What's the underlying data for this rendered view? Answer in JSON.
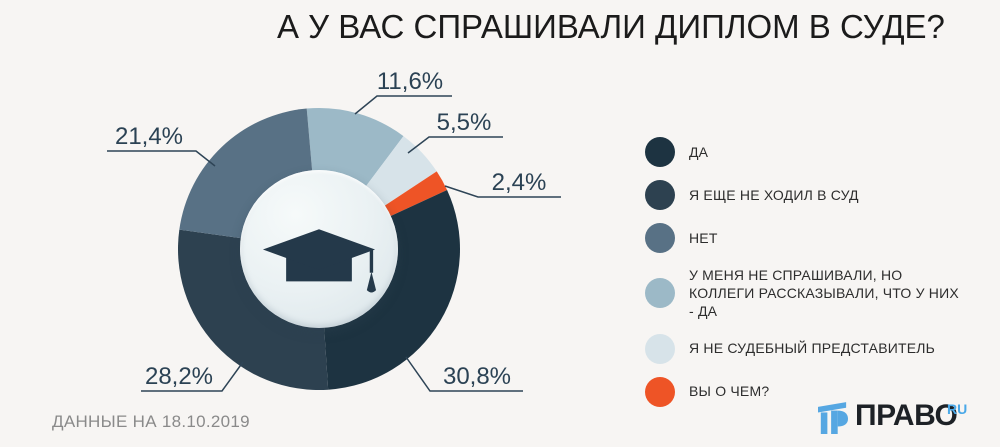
{
  "title": "А У ВАС СПРАШИВАЛИ ДИПЛОМ В СУДЕ?",
  "footer": {
    "note": "ДАННЫЕ НА 18.10.2019"
  },
  "logo": {
    "name": "ПРАВО",
    "domain": "RU",
    "brand_blue": "#56a7e2"
  },
  "colors": {
    "background": "#f7f5f3",
    "callout_text": "#2b4254",
    "callout_line": "#2e4456",
    "footer_text": "#8a8a8a"
  },
  "chart_data": {
    "type": "pie",
    "variant": "donut",
    "title": "А У ВАС СПРАШИВАЛИ ДИПЛОМ В СУДЕ?",
    "start_angle_deg": -5,
    "legend_position": "right",
    "slices": [
      {
        "label": "У МЕНЯ НЕ СПРАШИВАЛИ, НО КОЛЛЕГИ РАССКАЗЫВАЛИ, ЧТО У НИХ - ДА",
        "value": 11.6,
        "display": "11,6%",
        "color": "#9cb9c7"
      },
      {
        "label": "Я НЕ СУДЕБНЫЙ ПРЕДСТАВИТЕЛЬ",
        "value": 5.5,
        "display": "5,5%",
        "color": "#d7e3e9"
      },
      {
        "label": "ВЫ О ЧЕМ?",
        "value": 2.4,
        "display": "2,4%",
        "color": "#ee5426"
      },
      {
        "label": "ДА",
        "value": 30.8,
        "display": "30,8%",
        "color": "#1d3341"
      },
      {
        "label": "Я ЕЩЕ НЕ ХОДИЛ В СУД",
        "value": 28.2,
        "display": "28,2%",
        "color": "#2d4150"
      },
      {
        "label": "НЕТ",
        "value": 21.4,
        "display": "21,4%",
        "color": "#587185"
      }
    ],
    "legend": [
      {
        "label": "ДА",
        "color": "#1d3341"
      },
      {
        "label": "Я ЕЩЕ НЕ ХОДИЛ В СУД",
        "color": "#2d4150"
      },
      {
        "label": "НЕТ",
        "color": "#587185"
      },
      {
        "label": "У МЕНЯ НЕ СПРАШИВАЛИ, НО КОЛЛЕГИ РАССКАЗЫВАЛИ, ЧТО У НИХ - ДА",
        "color": "#9cb9c7"
      },
      {
        "label": "Я НЕ СУДЕБНЫЙ ПРЕДСТАВИТЕЛЬ",
        "color": "#d7e3e9"
      },
      {
        "label": "ВЫ О ЧЕМ?",
        "color": "#ee5426"
      }
    ]
  }
}
